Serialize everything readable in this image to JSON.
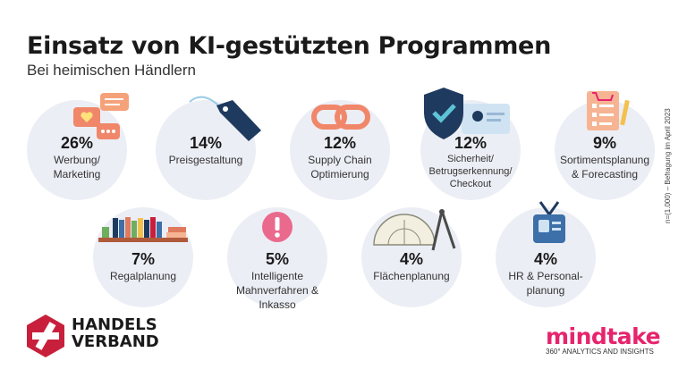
{
  "title": "Einsatz von KI-gestützten Programmen",
  "subtitle": "Bei heimischen Händlern",
  "note": "n=(1.000) – Befragung im April 2023",
  "chart_data": {
    "type": "table",
    "title": "Einsatz von KI-gestützten Programmen",
    "subtitle": "Bei heimischen Händlern",
    "items": [
      {
        "label": "Werbung/\nMarketing",
        "value": 26,
        "value_text": "26%",
        "icon": "speech-bubbles-heart-icon"
      },
      {
        "label": "Preisgestaltung",
        "value": 14,
        "value_text": "14%",
        "icon": "price-tag-icon"
      },
      {
        "label": "Supply Chain\nOptimierung",
        "value": 12,
        "value_text": "12%",
        "icon": "chain-link-icon"
      },
      {
        "label": "Sicherheit/\nBetrugserkennung/\nCheckout",
        "value": 12,
        "value_text": "12%",
        "icon": "shield-id-card-icon"
      },
      {
        "label": "Sortimentsplanung\n& Forecasting",
        "value": 9,
        "value_text": "9%",
        "icon": "checklist-cart-icon"
      },
      {
        "label": "Regalplanung",
        "value": 7,
        "value_text": "7%",
        "icon": "bookshelf-icon"
      },
      {
        "label": "Intelligente\nMahnverfahren &\nInkasso",
        "value": 5,
        "value_text": "5%",
        "icon": "exclamation-icon"
      },
      {
        "label": "Flächenplanung",
        "value": 4,
        "value_text": "4%",
        "icon": "protractor-compass-icon"
      },
      {
        "label": "HR & Personal-\nplanung",
        "value": 4,
        "value_text": "4%",
        "icon": "id-badge-icon"
      }
    ]
  },
  "logos": {
    "handelsverband": "HANDELS\nVERBAND",
    "mindtake_name": "mindtake",
    "mindtake_tag": "360° ANALYTICS AND INSIGHTS"
  },
  "colors": {
    "circle": "#eceef5",
    "navy": "#1f3a5f",
    "coral": "#f0876a",
    "pink": "#e6246e",
    "red": "#c8203c"
  }
}
